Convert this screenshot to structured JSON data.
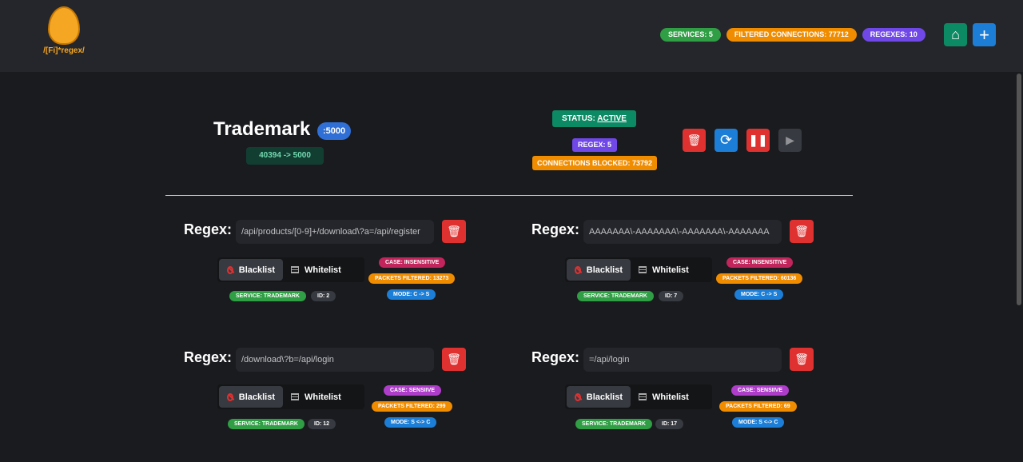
{
  "header": {
    "logo_text": "/[Fi]*regex/",
    "logo_inner": "10 0x6C (1|0 1-9]",
    "services": "SERVICES: 5",
    "filtered": "FILTERED CONNECTIONS: 77712",
    "regexes": "REGEXES: 10",
    "more": "···"
  },
  "service": {
    "name": "Trademark",
    "port": ":5000",
    "forward": "40394 -> 5000",
    "status_label": "STATUS: ",
    "status_value": "ACTIVE",
    "regex_count": "REGEX: 5",
    "blocked": "CONNECTIONS BLOCKED: 73792"
  },
  "colors": {
    "green": "#2f9e44",
    "orange": "#f08c00",
    "purple": "#7048e8",
    "teal": "#0c8a63",
    "blue": "#1c7ed6",
    "red": "#e03131",
    "pink": "#c2255c",
    "magenta": "#ae3ec9"
  },
  "regex_label": "Regex:",
  "blacklist": "Blacklist",
  "whitelist": "Whitelist",
  "regexes": [
    {
      "value": "/api/products/[0-9]+/download\\?a=/api/register",
      "case": "CASE: INSENSITIVE",
      "packets": "PACKETS FILTERED: 13273",
      "mode": "MODE: C -> S",
      "service": "SERVICE: TRADEMARK",
      "id": "ID: 2",
      "active": "blacklist"
    },
    {
      "value": "AAAAAAA\\-AAAAAAA\\-AAAAAAA\\-AAAAAAA",
      "case": "CASE: INSENSITIVE",
      "packets": "PACKETS FILTERED: 60136",
      "mode": "MODE: C -> S",
      "service": "SERVICE: TRADEMARK",
      "id": "ID: 7",
      "active": "blacklist"
    },
    {
      "value": "/download\\?b=/api/login",
      "case": "CASE: SENSIIVE",
      "packets": "PACKETS FILTERED: 299",
      "mode": "MODE: S <-> C",
      "service": "SERVICE: TRADEMARK",
      "id": "ID: 12",
      "active": "blacklist"
    },
    {
      "value": "=/api/login",
      "case": "CASE: SENSIIVE",
      "packets": "PACKETS FILTERED: 69",
      "mode": "MODE: S <-> C",
      "service": "SERVICE: TRADEMARK",
      "id": "ID: 17",
      "active": "blacklist"
    }
  ]
}
